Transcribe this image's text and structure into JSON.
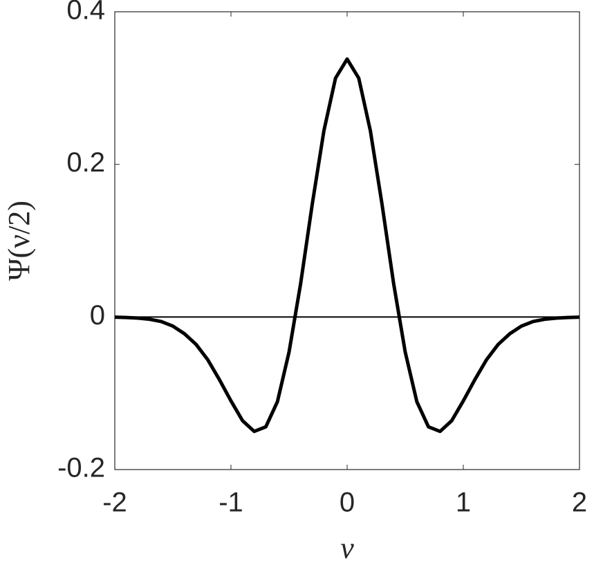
{
  "chart_data": {
    "type": "line",
    "x_label": "ν",
    "y_label": "Ψ(ν/2)",
    "x": [
      -2.0,
      -1.9,
      -1.8,
      -1.7,
      -1.6,
      -1.5,
      -1.4,
      -1.3,
      -1.2,
      -1.1,
      -1.0,
      -0.9,
      -0.8,
      -0.7,
      -0.6,
      -0.5,
      -0.4,
      -0.3,
      -0.2,
      -0.1,
      0.0,
      0.1,
      0.2,
      0.3,
      0.4,
      0.5,
      0.6,
      0.7,
      0.8,
      0.9,
      1.0,
      1.1,
      1.2,
      1.3,
      1.4,
      1.5,
      1.6,
      1.7,
      1.8,
      1.9,
      2.0
    ],
    "series": [
      {
        "color": "#000000",
        "values": [
          -0.0003,
          -0.0007,
          -0.0015,
          -0.003,
          -0.006,
          -0.012,
          -0.022,
          -0.036,
          -0.056,
          -0.082,
          -0.11,
          -0.136,
          -0.15,
          -0.144,
          -0.111,
          -0.046,
          0.044,
          0.148,
          0.244,
          0.313,
          0.338,
          0.313,
          0.244,
          0.148,
          0.044,
          -0.046,
          -0.111,
          -0.144,
          -0.15,
          -0.136,
          -0.11,
          -0.082,
          -0.056,
          -0.036,
          -0.022,
          -0.012,
          -0.006,
          -0.003,
          -0.0015,
          -0.0007,
          -0.0003
        ]
      }
    ],
    "xlim": [
      -2,
      2
    ],
    "xticks": [
      -2,
      -1,
      0,
      1,
      2
    ],
    "ylim": [
      -0.2,
      0.4
    ],
    "yticks": [
      -0.2,
      0,
      0.2,
      0.4
    ],
    "zero_line": true
  }
}
